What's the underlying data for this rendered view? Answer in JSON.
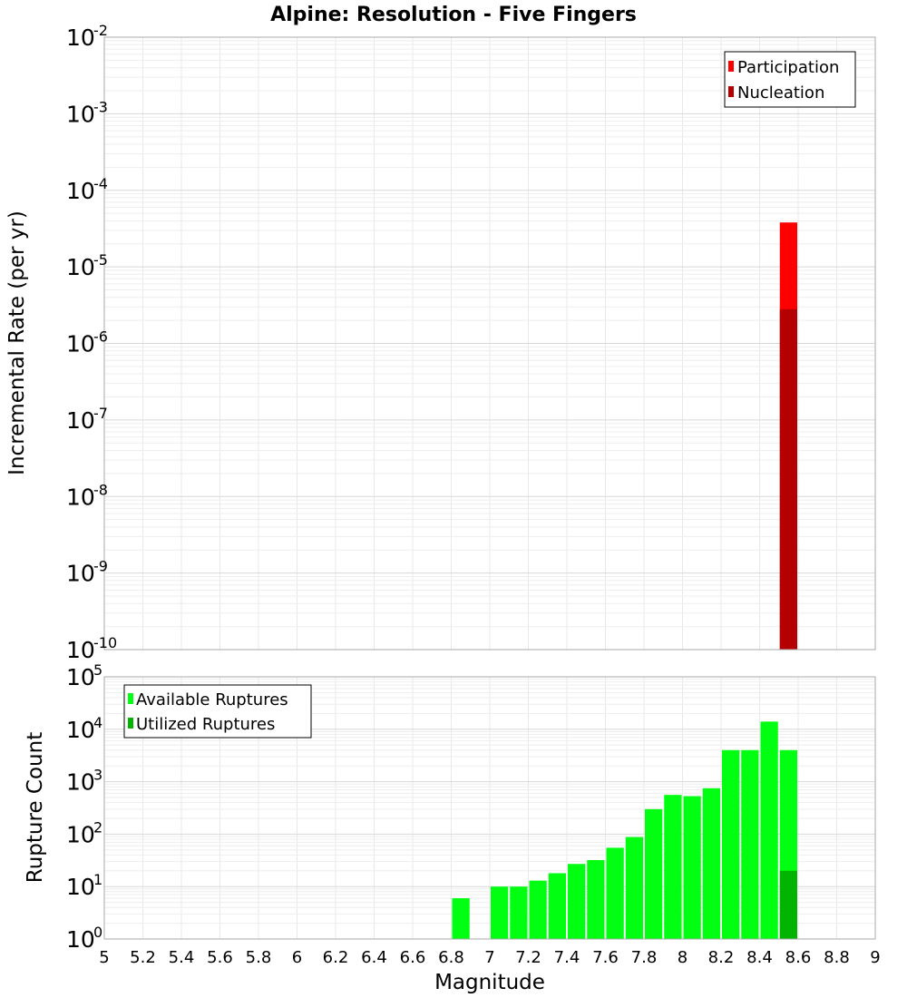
{
  "chart_data": [
    {
      "type": "bar",
      "title": "Alpine: Resolution - Five Fingers",
      "xlabel": "Magnitude",
      "ylabel": "Incremental Rate (per yr)",
      "yscale": "log",
      "xlim": [
        5,
        9
      ],
      "ylim_exp": [
        -10,
        -2
      ],
      "y_ticks": [
        {
          "base": "10",
          "exp": "-10"
        },
        {
          "base": "10",
          "exp": "-9"
        },
        {
          "base": "10",
          "exp": "-8"
        },
        {
          "base": "10",
          "exp": "-7"
        },
        {
          "base": "10",
          "exp": "-6"
        },
        {
          "base": "10",
          "exp": "-5"
        },
        {
          "base": "10",
          "exp": "-4"
        },
        {
          "base": "10",
          "exp": "-3"
        },
        {
          "base": "10",
          "exp": "-2"
        }
      ],
      "bin_width": 0.1,
      "series": [
        {
          "name": "Participation",
          "color": "#ff0000",
          "x": [
            8.55
          ],
          "values": [
            3.8e-05
          ]
        },
        {
          "name": "Nucleation",
          "color": "#b40000",
          "x": [
            8.55
          ],
          "values": [
            2.8e-06
          ]
        }
      ],
      "legend": [
        "Participation",
        "Nucleation"
      ],
      "legend_position": "top-right",
      "grid": true
    },
    {
      "type": "bar",
      "xlabel": "Magnitude",
      "ylabel": "Rupture Count",
      "yscale": "log",
      "xlim": [
        5,
        9
      ],
      "ylim_exp": [
        0,
        5
      ],
      "y_ticks": [
        {
          "base": "10",
          "exp": "0"
        },
        {
          "base": "10",
          "exp": "1"
        },
        {
          "base": "10",
          "exp": "2"
        },
        {
          "base": "10",
          "exp": "3"
        },
        {
          "base": "10",
          "exp": "4"
        },
        {
          "base": "10",
          "exp": "5"
        }
      ],
      "x_ticks": [
        "5",
        "5.2",
        "5.4",
        "5.6",
        "5.8",
        "6",
        "6.2",
        "6.4",
        "6.6",
        "6.8",
        "7",
        "7.2",
        "7.4",
        "7.6",
        "7.8",
        "8",
        "8.2",
        "8.4",
        "8.6",
        "8.8",
        "9"
      ],
      "bin_width": 0.1,
      "series": [
        {
          "name": "Available Ruptures",
          "color": "#00ff10",
          "x": [
            6.85,
            7.05,
            7.15,
            7.25,
            7.35,
            7.45,
            7.55,
            7.65,
            7.75,
            7.85,
            7.95,
            8.05,
            8.15,
            8.25,
            8.35,
            8.45,
            8.55
          ],
          "values": [
            6,
            10,
            10,
            13,
            18,
            27,
            32,
            55,
            88,
            300,
            560,
            530,
            750,
            4000,
            4000,
            14000,
            4000
          ]
        },
        {
          "name": "Utilized Ruptures",
          "color": "#00b400",
          "x": [
            8.55
          ],
          "values": [
            20
          ]
        }
      ],
      "legend": [
        "Available Ruptures",
        "Utilized Ruptures"
      ],
      "legend_position": "top-left",
      "grid": true
    }
  ]
}
